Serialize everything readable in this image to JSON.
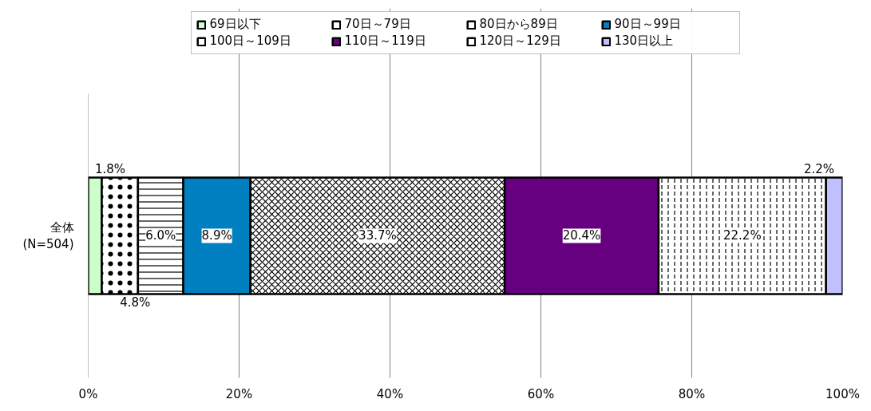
{
  "chart_data": {
    "type": "bar",
    "orientation": "horizontal",
    "stacked": true,
    "categories": [
      "全体\n(N=504)"
    ],
    "series": [
      {
        "name": "69日以下",
        "color": "#ccffcc",
        "values": [
          1.8
        ],
        "value_labels": [
          "1.8%"
        ]
      },
      {
        "name": "70日～79日",
        "color": "#ffffff",
        "values": [
          4.8
        ],
        "value_labels": [
          "4.8%"
        ]
      },
      {
        "name": "80日から89日",
        "color": "#ffffff",
        "values": [
          6.0
        ],
        "value_labels": [
          "6.0%"
        ]
      },
      {
        "name": "90日～99日",
        "color": "#0080c0",
        "values": [
          8.9
        ],
        "value_labels": [
          "8.9%"
        ]
      },
      {
        "name": "100日～109日",
        "color": "#ffffff",
        "values": [
          33.7
        ],
        "value_labels": [
          "33.7%"
        ]
      },
      {
        "name": "110日～119日",
        "color": "#660080",
        "values": [
          20.4
        ],
        "value_labels": [
          "20.4%"
        ]
      },
      {
        "name": "120日～129日",
        "color": "#ffffff",
        "values": [
          22.2
        ],
        "value_labels": [
          "22.2%"
        ]
      },
      {
        "name": "130日以上",
        "color": "#c0c0ff",
        "values": [
          2.2
        ],
        "value_labels": [
          "2.2%"
        ]
      }
    ],
    "xlim": [
      0,
      100
    ],
    "xticks": [
      {
        "value": 0,
        "label": "0%"
      },
      {
        "value": 20,
        "label": "20%"
      },
      {
        "value": 40,
        "label": "40%"
      },
      {
        "value": 60,
        "label": "60%"
      },
      {
        "value": 80,
        "label": "80%"
      },
      {
        "value": 100,
        "label": "100%"
      }
    ],
    "grid": "x",
    "legend": "top"
  }
}
